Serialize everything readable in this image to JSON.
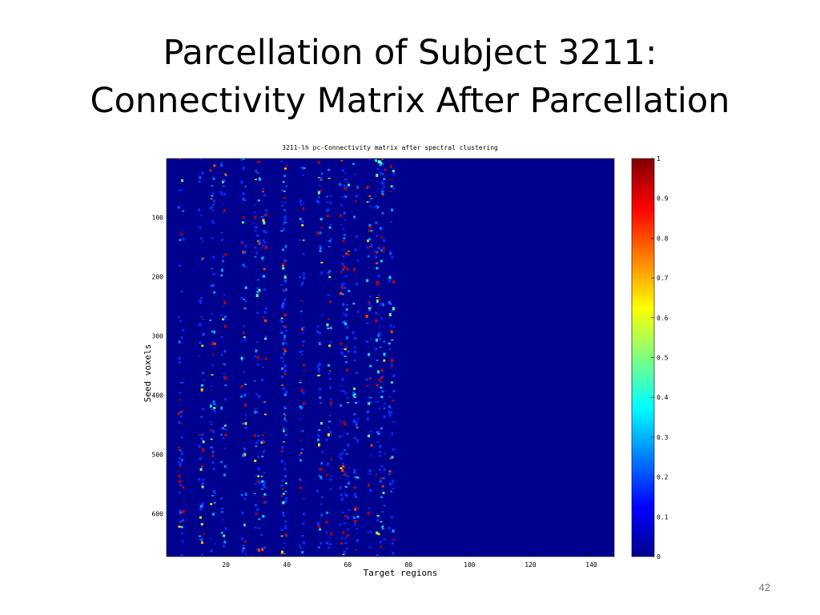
{
  "slide": {
    "title_lines": [
      "Parcellation of Subject 3211:",
      "Connectivity Matrix After Parcellation"
    ],
    "page_number": "42"
  },
  "chart_data": {
    "type": "heatmap",
    "title": "3211-lh pc-Connectivity matrix after spectral clustering",
    "xlabel": "Target regions",
    "ylabel": "Seed voxels",
    "xlim": [
      0.5,
      147.5
    ],
    "xticks": [
      20,
      40,
      60,
      80,
      100,
      120,
      140
    ],
    "ylim": [
      0.5,
      672
    ],
    "yticks": [
      100,
      200,
      300,
      400,
      500,
      600
    ],
    "colorbar": {
      "lim": [
        0,
        1
      ],
      "ticks": [
        0,
        0.1,
        0.2,
        0.3,
        0.4,
        0.5,
        0.6,
        0.7,
        0.8,
        0.9,
        1
      ]
    }
  }
}
